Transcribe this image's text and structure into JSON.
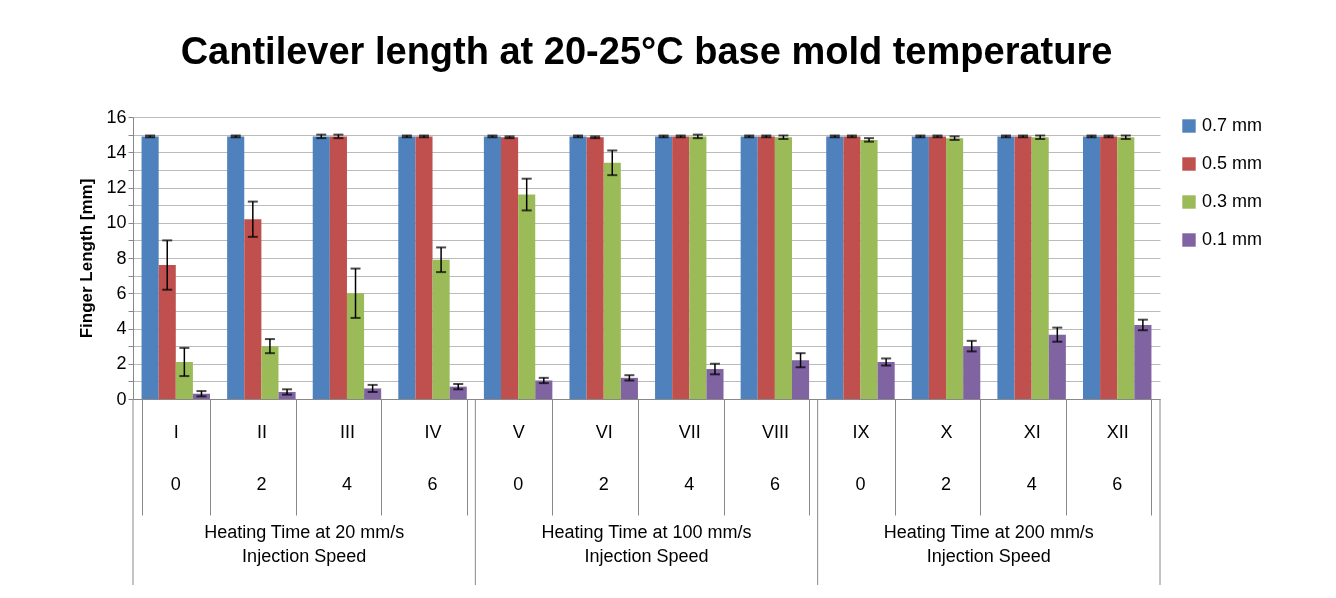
{
  "chart_data": {
    "type": "bar",
    "title": "Cantilever length at 20-25°C base mold temperature",
    "ylabel": "Finger Length [mm]",
    "categories": [
      "I",
      "II",
      "III",
      "IV",
      "V",
      "VI",
      "VII",
      "VIII",
      "IX",
      "X",
      "XI",
      "XII"
    ],
    "series": [
      {
        "name": "0.7 mm",
        "color": "#4f81bd",
        "values": [
          14.9,
          14.9,
          14.9,
          14.9,
          14.9,
          14.9,
          14.9,
          14.9,
          14.9,
          14.9,
          14.9,
          14.9
        ],
        "errors": [
          0.05,
          0.05,
          0.1,
          0.05,
          0.05,
          0.05,
          0.05,
          0.05,
          0.05,
          0.05,
          0.05,
          0.05
        ]
      },
      {
        "name": "0.5 mm",
        "color": "#c0504d",
        "values": [
          7.6,
          10.2,
          14.9,
          14.9,
          14.85,
          14.85,
          14.9,
          14.9,
          14.9,
          14.9,
          14.9,
          14.9
        ],
        "errors": [
          1.4,
          1.0,
          0.1,
          0.05,
          0.05,
          0.05,
          0.05,
          0.05,
          0.05,
          0.05,
          0.05,
          0.05
        ]
      },
      {
        "name": "0.3 mm",
        "color": "#9bbb59",
        "values": [
          2.1,
          3.0,
          6.0,
          7.9,
          11.6,
          13.4,
          14.9,
          14.85,
          14.7,
          14.8,
          14.85,
          14.85
        ],
        "errors": [
          0.8,
          0.4,
          1.4,
          0.7,
          0.9,
          0.7,
          0.1,
          0.1,
          0.1,
          0.1,
          0.1,
          0.1
        ]
      },
      {
        "name": "0.1 mm",
        "color": "#8064a2",
        "values": [
          0.3,
          0.4,
          0.6,
          0.7,
          1.05,
          1.2,
          1.7,
          2.2,
          2.1,
          3.0,
          3.65,
          4.2
        ],
        "errors": [
          0.15,
          0.15,
          0.2,
          0.15,
          0.15,
          0.15,
          0.3,
          0.4,
          0.2,
          0.3,
          0.4,
          0.3
        ]
      }
    ],
    "ylim": [
      0,
      16
    ],
    "yticks": [
      0,
      {
        "value": 1,
        "label": null
      },
      2,
      {
        "value": 3,
        "label": null
      },
      4,
      {
        "value": 5,
        "label": null
      },
      6,
      {
        "value": 7,
        "label": null
      },
      8,
      {
        "value": 9,
        "label": null
      },
      10,
      {
        "value": 11,
        "label": null
      },
      12,
      {
        "value": 13,
        "label": null
      },
      14,
      {
        "value": 15,
        "label": null
      },
      16
    ],
    "grid": true,
    "legend": "right",
    "annotations": [
      "0",
      "2",
      "4",
      "6",
      "0",
      "2",
      "4",
      "6",
      "0",
      "2",
      "4",
      "6",
      "Heating Time at 20 mm/s\nInjection Speed",
      "Heating Time at 100 mm/s\nInjection Speed",
      "Heating Time at 200 mm/s\nInjection Speed"
    ]
  }
}
